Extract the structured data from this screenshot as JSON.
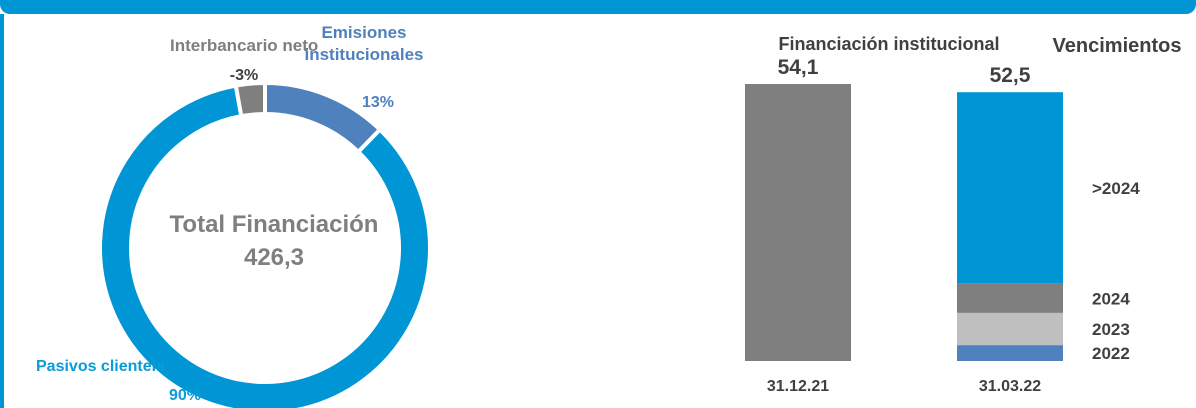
{
  "chart_data": [
    {
      "type": "pie",
      "variant": "donut",
      "center_title": "Total Financiación",
      "center_value": "426,3",
      "slices": [
        {
          "label": "Emisiones institucionales",
          "value_label": "13%",
          "value": 13,
          "color": "#4f81bd"
        },
        {
          "label": "Pasivos clientela",
          "value_label": "90%",
          "value": 90,
          "color": "#0096d6"
        },
        {
          "label": "Interbancario neto",
          "value_label": "-3%",
          "value": 3,
          "color": "#7f7f7f"
        }
      ]
    },
    {
      "type": "bar",
      "stacked": true,
      "title": "Financiación institucional",
      "legend_title": "Vencimientos",
      "categories": [
        "31.12.21",
        "31.03.22"
      ],
      "totals": [
        "54,1",
        "52,5"
      ],
      "total_values": [
        54.1,
        52.5
      ],
      "series": [
        {
          "name": "",
          "values": [
            54.1,
            0
          ],
          "color": "#7f7f7f"
        },
        {
          "name": "2022",
          "values": [
            0,
            3.1
          ],
          "color": "#4f81bd"
        },
        {
          "name": "2023",
          "values": [
            0,
            6.3
          ],
          "color": "#bfbfbf"
        },
        {
          "name": "2024",
          "values": [
            0,
            5.7
          ],
          "color": "#7f7f7f"
        },
        {
          "name": ">2024",
          "values": [
            0,
            37.4
          ],
          "color": "#0096d6"
        }
      ]
    }
  ]
}
